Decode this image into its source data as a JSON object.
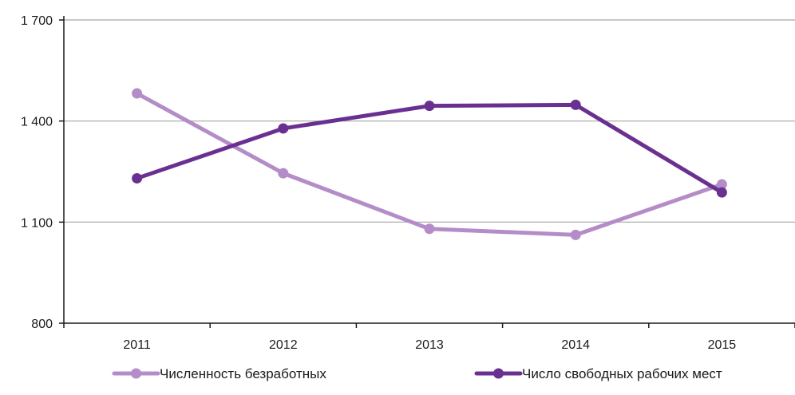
{
  "chart_data": {
    "type": "line",
    "title": "",
    "xlabel": "",
    "ylabel": "",
    "categories": [
      "2011",
      "2012",
      "2013",
      "2014",
      "2015"
    ],
    "ylim": [
      800,
      1700
    ],
    "yticks": [
      800,
      1100,
      1400,
      1700
    ],
    "ytick_labels": [
      "800",
      "1 100",
      "1 400",
      "1 700"
    ],
    "grid": true,
    "legend": "bottom",
    "series": [
      {
        "name": "Численность безработных",
        "values": [
          1482,
          1245,
          1080,
          1062,
          1212
        ],
        "color": "#b48cc8"
      },
      {
        "name": "Число свободных рабочих мест",
        "values": [
          1230,
          1378,
          1445,
          1448,
          1188
        ],
        "color": "#6a3091"
      }
    ]
  }
}
